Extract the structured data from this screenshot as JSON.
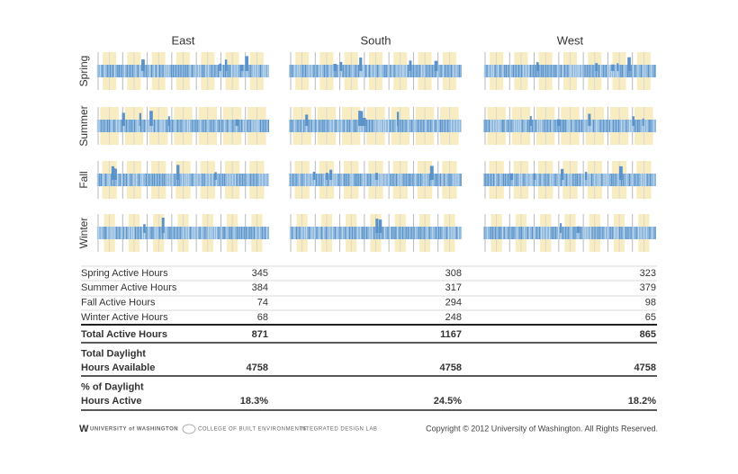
{
  "columns": [
    "East",
    "South",
    "West"
  ],
  "seasons": [
    "Spring",
    "Summer",
    "Fall",
    "Winter"
  ],
  "table": {
    "rows": [
      {
        "label": "Spring Active Hours",
        "values": [
          "345",
          "308",
          "323"
        ]
      },
      {
        "label": "Summer Active Hours",
        "values": [
          "384",
          "317",
          "379"
        ]
      },
      {
        "label": "Fall Active Hours",
        "values": [
          "74",
          "294",
          "98"
        ]
      },
      {
        "label": "Winter Active Hours",
        "values": [
          "68",
          "248",
          "65"
        ]
      }
    ],
    "totals": [
      {
        "label": [
          "Total Active Hours"
        ],
        "values": [
          "871",
          "1167",
          "865"
        ]
      },
      {
        "label": [
          "Total Daylight",
          "Hours Available"
        ],
        "values": [
          "4758",
          "4758",
          "4758"
        ]
      },
      {
        "label": [
          "% of Daylight",
          "Hours Active"
        ],
        "values": [
          "18.3%",
          "24.5%",
          "18.2%"
        ]
      }
    ]
  },
  "footer": {
    "logo": "W",
    "university": "UNIVERSITY of WASHINGTON",
    "college": "COLLEGE OF BUILT ENVIRONMENTS",
    "lab": "INTEGRATED DESIGN LAB",
    "copyright": "Copyright © 2012 University of Washington. All Rights Reserved."
  }
}
